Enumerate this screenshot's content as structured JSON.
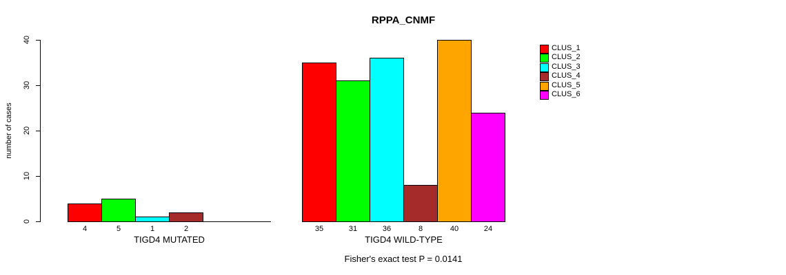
{
  "chart_data": {
    "type": "bar",
    "title": "RPPA_CNMF",
    "ylabel": "number of cases",
    "xlabel": "",
    "ylim": [
      0,
      40
    ],
    "yticks": [
      0,
      10,
      20,
      30,
      40
    ],
    "grid": false,
    "legend_position": "right",
    "legend": [
      {
        "label": "CLUS_1",
        "color": "#FF0000"
      },
      {
        "label": "CLUS_2",
        "color": "#00FF00"
      },
      {
        "label": "CLUS_3",
        "color": "#00FFFF"
      },
      {
        "label": "CLUS_4",
        "color": "#A52A2A"
      },
      {
        "label": "CLUS_5",
        "color": "#FFA500"
      },
      {
        "label": "CLUS_6",
        "color": "#FF00FF"
      }
    ],
    "groups": [
      {
        "label": "TIGD4 MUTATED",
        "values": [
          4,
          5,
          1,
          2,
          0,
          0
        ]
      },
      {
        "label": "TIGD4 WILD-TYPE",
        "values": [
          35,
          31,
          36,
          8,
          40,
          24
        ]
      }
    ],
    "footnote": "Fisher's exact test P = 0.0141"
  }
}
